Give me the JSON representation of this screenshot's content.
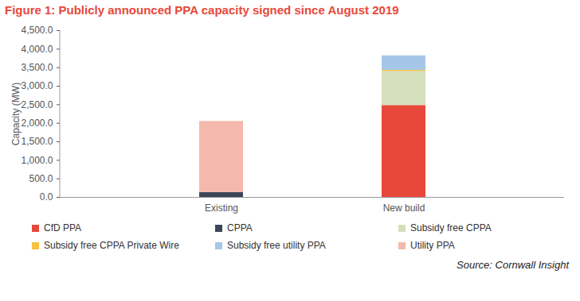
{
  "chart_data": {
    "type": "bar",
    "stacked": true,
    "title": "Figure 1: Publicly announced PPA capacity signed since August 2019",
    "y_label": "Capacity (MW)",
    "caption": "Source: Cornwall Insight",
    "categories": [
      "Existing",
      "New build"
    ],
    "series": [
      {
        "name": "CfD PPA",
        "color": "#e8483a",
        "values": [
          0,
          2480
        ]
      },
      {
        "name": "CPPA",
        "color": "#3b4757",
        "values": [
          130,
          0
        ]
      },
      {
        "name": "Subsidy free CPPA",
        "color": "#d5dfbe",
        "values": [
          0,
          920
        ]
      },
      {
        "name": "Subsidy free CPPA Private Wire",
        "color": "#f5c242",
        "values": [
          0,
          30
        ]
      },
      {
        "name": "Subsidy free utility PPA",
        "color": "#a6c6e8",
        "values": [
          0,
          390
        ]
      },
      {
        "name": "Utility PPA",
        "color": "#f5b8ad",
        "values": [
          1920,
          0
        ]
      }
    ],
    "ylim": [
      0,
      4500
    ],
    "yticks": [
      {
        "value": 0,
        "label": "0.0"
      },
      {
        "value": 500,
        "label": "500.0"
      },
      {
        "value": 1000,
        "label": "1,000.0"
      },
      {
        "value": 1500,
        "label": "1,500.0"
      },
      {
        "value": 2000,
        "label": "2,000.0"
      },
      {
        "value": 2500,
        "label": "2,500.0"
      },
      {
        "value": 3000,
        "label": "3,000.0"
      },
      {
        "value": 3500,
        "label": "3,500.0"
      },
      {
        "value": 4000,
        "label": "4,000.0"
      },
      {
        "value": 4500,
        "label": "4,500.0"
      }
    ],
    "grid": false,
    "legend": "bottom"
  }
}
